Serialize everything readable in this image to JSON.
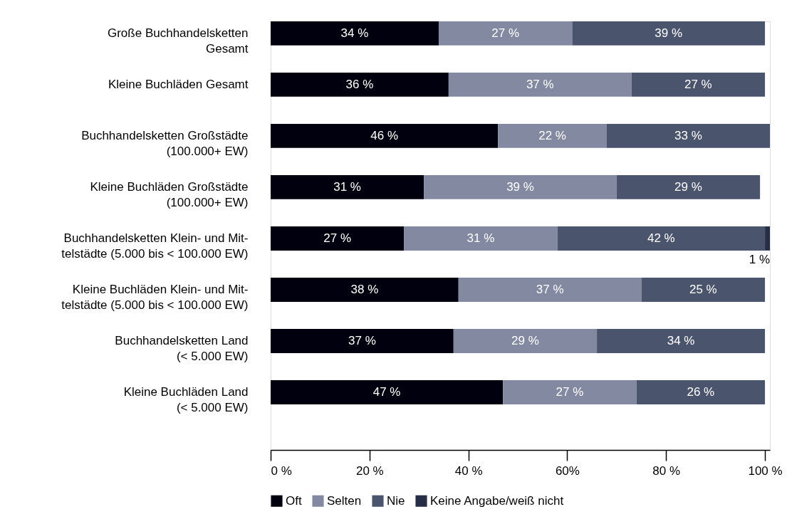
{
  "chart_data": {
    "type": "bar",
    "orientation": "horizontal",
    "stacked": true,
    "categories": [
      "Große Buchhandelsketten\nGesamt",
      "Kleine Buchläden Gesamt",
      "Buchhandelsketten Großstädte\n(100.000+ EW)",
      "Kleine Buchläden Großstädte\n(100.000+ EW)",
      "Buchhandelsketten Klein- und Mit-\ntelstädte (5.000 bis < 100.000 EW)",
      "Kleine Buchläden Klein- und Mit-\ntelstädte (5.000 bis < 100.000 EW)",
      "Buchhandelsketten Land\n(< 5.000 EW)",
      "Kleine Buchläden Land\n(< 5.000 EW)"
    ],
    "series": [
      {
        "name": "Oft",
        "color": "#00000f",
        "values": [
          34,
          36,
          46,
          31,
          27,
          38,
          37,
          47
        ],
        "value_labels": [
          "34 %",
          "36 %",
          "46 %",
          "31 %",
          "27 %",
          "38 %",
          "37 %",
          "47 %"
        ]
      },
      {
        "name": "Selten",
        "color": "#8289a0",
        "values": [
          27,
          37,
          22,
          39,
          31,
          37,
          29,
          27
        ],
        "value_labels": [
          "27 %",
          "37 %",
          "22 %",
          "39 %",
          "31 %",
          "37 %",
          "29 %",
          "27 %"
        ]
      },
      {
        "name": "Nie",
        "color": "#4a546d",
        "values": [
          39,
          27,
          33,
          29,
          42,
          25,
          34,
          26
        ],
        "value_labels": [
          "39 %",
          "27 %",
          "33 %",
          "29 %",
          "42 %",
          "25 %",
          "34 %",
          "26 %"
        ]
      },
      {
        "name": "Keine Angabe/weiß nicht",
        "color": "#252e45",
        "values": [
          null,
          null,
          null,
          null,
          1,
          null,
          null,
          null
        ],
        "value_labels": [
          null,
          null,
          null,
          null,
          "1 %",
          null,
          null,
          null
        ]
      }
    ],
    "xlim": [
      0,
      101
    ],
    "xticks": [
      {
        "value": 0,
        "label": "0 %"
      },
      {
        "value": 20,
        "label": "20 %"
      },
      {
        "value": 40,
        "label": "40 %"
      },
      {
        "value": 60,
        "label": "60%"
      },
      {
        "value": 80,
        "label": "80 %"
      },
      {
        "value": 100,
        "label": "100 %"
      }
    ],
    "grid": false,
    "legend": "bottom"
  }
}
